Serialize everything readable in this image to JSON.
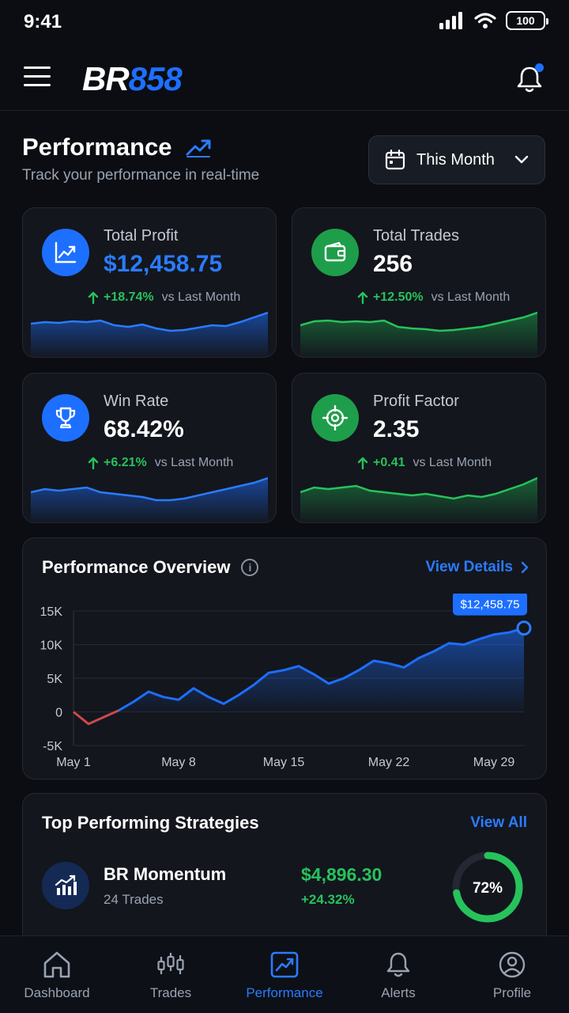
{
  "status": {
    "time": "9:41",
    "battery": "100"
  },
  "header": {
    "logo_part1": "BR",
    "logo_part2": "858"
  },
  "page": {
    "title": "Performance",
    "subtitle": "Track your performance in real-time",
    "period": "This Month"
  },
  "stats": [
    {
      "label": "Total Profit",
      "value": "$12,458.75",
      "change": "+18.74%",
      "vs": "vs Last Month",
      "icon": "chart-line-icon",
      "color": "#1d6fff",
      "spark": [
        42,
        44,
        43,
        45,
        44,
        46,
        40,
        38,
        41,
        36,
        33,
        34,
        37,
        40,
        39,
        44,
        50,
        56
      ]
    },
    {
      "label": "Total Trades",
      "value": "256",
      "change": "+12.50%",
      "vs": "vs Last Month",
      "icon": "wallet-icon",
      "color": "#1e9e4a",
      "spark": [
        40,
        45,
        46,
        44,
        45,
        44,
        46,
        38,
        36,
        35,
        33,
        34,
        36,
        38,
        42,
        46,
        50,
        56
      ]
    },
    {
      "label": "Win Rate",
      "value": "68.42%",
      "change": "+6.21%",
      "vs": "vs Last Month",
      "icon": "trophy-icon",
      "color": "#1d6fff",
      "spark": [
        38,
        42,
        40,
        42,
        44,
        38,
        36,
        34,
        32,
        28,
        28,
        30,
        34,
        38,
        42,
        46,
        50,
        56
      ]
    },
    {
      "label": "Profit Factor",
      "value": "2.35",
      "change": "+0.41",
      "vs": "vs Last Month",
      "icon": "target-icon",
      "color": "#1e9e4a",
      "spark": [
        38,
        44,
        42,
        44,
        46,
        40,
        38,
        36,
        34,
        36,
        33,
        30,
        34,
        32,
        36,
        42,
        48,
        56
      ]
    }
  ],
  "overview": {
    "title": "Performance Overview",
    "link": "View Details",
    "tooltip": "$12,458.75"
  },
  "chart_data": {
    "type": "line",
    "title": "Performance Overview",
    "x_ticks": [
      "May 1",
      "May 8",
      "May 15",
      "May 22",
      "May 29"
    ],
    "y_ticks": [
      "15K",
      "10K",
      "5K",
      "0",
      "-5K"
    ],
    "ylim": [
      -5000,
      15000
    ],
    "x": [
      1,
      2,
      3,
      4,
      5,
      6,
      7,
      8,
      9,
      10,
      11,
      12,
      13,
      14,
      15,
      16,
      17,
      18,
      19,
      20,
      21,
      22,
      23,
      24,
      25,
      26,
      27,
      28,
      29,
      30,
      31
    ],
    "values": [
      0,
      -1800,
      -800,
      200,
      1500,
      3000,
      2200,
      1800,
      3500,
      2200,
      1200,
      2500,
      4000,
      5800,
      6200,
      6800,
      5600,
      4200,
      5000,
      6200,
      7600,
      7200,
      6600,
      8000,
      9000,
      10200,
      10000,
      10800,
      11500,
      11800,
      12458.75
    ],
    "negative_color": "#c94a4a",
    "positive_color": "#1d6fff"
  },
  "strategies": {
    "title": "Top Performing Strategies",
    "link": "View All",
    "items": [
      {
        "name": "BR Momentum",
        "trades": "24 Trades",
        "profit": "$4,896.30",
        "change": "+24.32%",
        "win_pct": 72,
        "win_label": "72%"
      }
    ]
  },
  "nav": [
    {
      "label": "Dashboard",
      "icon": "home-icon",
      "active": false
    },
    {
      "label": "Trades",
      "icon": "candlestick-icon",
      "active": false
    },
    {
      "label": "Performance",
      "icon": "performance-chart-icon",
      "active": true
    },
    {
      "label": "Alerts",
      "icon": "bell-icon",
      "active": false
    },
    {
      "label": "Profile",
      "icon": "user-circle-icon",
      "active": false
    }
  ]
}
